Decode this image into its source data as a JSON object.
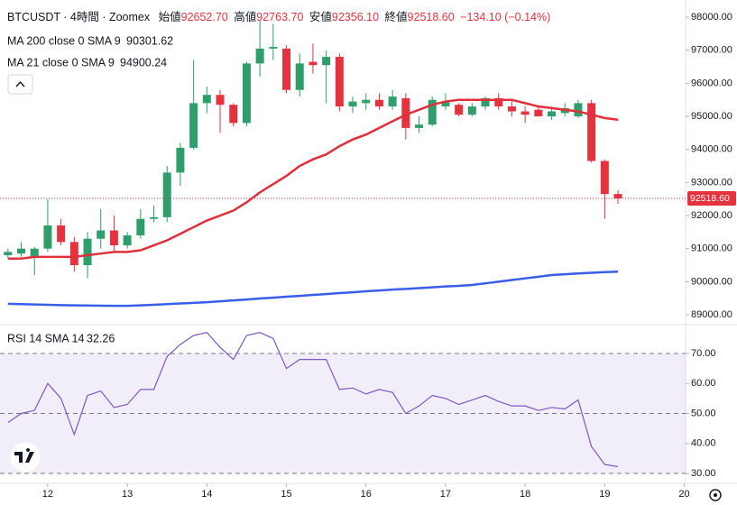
{
  "chart_data": [
    {
      "type": "candlestick",
      "header": {
        "title": "BTCUSDT · 4時間 · Zoomex",
        "open_label": "始値",
        "open": "92652.70",
        "high_label": "高値",
        "high": "92763.70",
        "low_label": "安値",
        "low": "92356.10",
        "close_label": "終値",
        "close": "92518.60",
        "change": "−134.10 (−0.14%)"
      },
      "up_color": "#2e9e6b",
      "down_color": "#e5323f",
      "xlim": [
        -0.6,
        51.1
      ],
      "ylim": [
        88755,
        98520
      ],
      "yticks": [
        {
          "value": 98000,
          "label": "98000.00"
        },
        {
          "value": 97000,
          "label": "97000.00"
        },
        {
          "value": 96000,
          "label": "96000.00"
        },
        {
          "value": 95000,
          "label": "95000.00"
        },
        {
          "value": 94000,
          "label": "94000.00"
        },
        {
          "value": 93000,
          "label": "93000.00"
        },
        {
          "value": 92000,
          "label": "92000.00"
        },
        {
          "value": 91000,
          "label": "91000.00"
        },
        {
          "value": 90000,
          "label": "90000.00"
        },
        {
          "value": 89000,
          "label": "89000.00"
        }
      ],
      "price_label": "92518.60",
      "candles": {
        "open": [
          90800,
          90850,
          90750,
          91000,
          91700,
          91200,
          90500,
          91300,
          91550,
          91100,
          91400,
          91900,
          91950,
          93300,
          94050,
          95400,
          95650,
          95350,
          94800,
          96600,
          97050,
          97050,
          95800,
          96650,
          96550,
          96800,
          95300,
          95400,
          95500,
          95300,
          95550,
          94650,
          94750,
          95300,
          95350,
          95050,
          95300,
          95550,
          95300,
          95150,
          95200,
          95000,
          95100,
          95000,
          95400,
          93650,
          92652.7
        ],
        "high": [
          91000,
          91200,
          91050,
          92500,
          91900,
          91350,
          91500,
          92200,
          92000,
          91500,
          92200,
          92300,
          93500,
          94200,
          96700,
          95900,
          95800,
          95400,
          96650,
          97900,
          97800,
          97150,
          96900,
          97200,
          97000,
          96900,
          95600,
          95700,
          95700,
          95800,
          95700,
          95000,
          95600,
          95700,
          95400,
          95400,
          95600,
          95700,
          95500,
          95300,
          95300,
          95300,
          95400,
          95500,
          95500,
          93700,
          92763.7
        ],
        "low": [
          90700,
          90750,
          90200,
          90900,
          91100,
          90300,
          90100,
          91000,
          90900,
          91000,
          91300,
          91800,
          91800,
          92900,
          94000,
          95100,
          94500,
          94700,
          94700,
          96200,
          96700,
          95700,
          95600,
          96300,
          95400,
          95150,
          95100,
          95200,
          95200,
          95200,
          94300,
          94500,
          94700,
          95200,
          95000,
          95000,
          95200,
          95200,
          95000,
          94800,
          95000,
          94900,
          95000,
          94950,
          93600,
          91900,
          92356.1
        ],
        "close": [
          90900,
          91000,
          91000,
          91700,
          91200,
          90500,
          91300,
          91550,
          91100,
          91400,
          91900,
          91950,
          93300,
          94050,
          95400,
          95650,
          95350,
          94800,
          96600,
          97050,
          97100,
          95800,
          96600,
          96550,
          96800,
          95300,
          95450,
          95500,
          95300,
          95600,
          94650,
          94750,
          95500,
          95450,
          95050,
          95300,
          95550,
          95300,
          95150,
          95050,
          95000,
          95150,
          95250,
          95400,
          93650,
          92650,
          92518.6
        ]
      },
      "series": [
        {
          "name": "MA 200 close 0 SMA 9",
          "last_label": "90301.62",
          "color": "#3a5ee8",
          "values": [
            89330,
            89320,
            89310,
            89300,
            89290,
            89285,
            89280,
            89275,
            89270,
            89270,
            89285,
            89300,
            89320,
            89340,
            89360,
            89380,
            89405,
            89435,
            89460,
            89490,
            89515,
            89545,
            89570,
            89600,
            89625,
            89655,
            89680,
            89710,
            89735,
            89760,
            89780,
            89805,
            89830,
            89855,
            89875,
            89900,
            89950,
            90000,
            90050,
            90100,
            90150,
            90200,
            90225,
            90250,
            90270,
            90290,
            90301.62
          ]
        },
        {
          "name": "MA 21 close 0 SMA 9",
          "last_label": "94900.24",
          "color": "#e0303c",
          "values": [
            90700,
            90700,
            90750,
            90750,
            90750,
            90750,
            90800,
            90850,
            90900,
            90900,
            90950,
            91100,
            91250,
            91450,
            91650,
            91850,
            92000,
            92150,
            92400,
            92700,
            92950,
            93200,
            93500,
            93700,
            93850,
            94100,
            94300,
            94450,
            94650,
            94850,
            95050,
            95200,
            95350,
            95450,
            95500,
            95500,
            95500,
            95500,
            95500,
            95400,
            95300,
            95250,
            95200,
            95150,
            95050,
            94950,
            94900.24
          ]
        }
      ]
    },
    {
      "type": "line",
      "xlim": [
        -0.6,
        51.1
      ],
      "ylim": [
        27,
        79
      ],
      "yticks": [
        {
          "value": 70,
          "label": "70.00"
        },
        {
          "value": 60,
          "label": "60.00"
        },
        {
          "value": 50,
          "label": "50.00"
        },
        {
          "value": 40,
          "label": "40.00"
        },
        {
          "value": 30,
          "label": "30.00"
        }
      ],
      "band": [
        30,
        70
      ],
      "levels": [
        70,
        50,
        30
      ],
      "xticks": [
        {
          "value": 3,
          "label": "12"
        },
        {
          "value": 9,
          "label": "13"
        },
        {
          "value": 15,
          "label": "14"
        },
        {
          "value": 21,
          "label": "15"
        },
        {
          "value": 27,
          "label": "16"
        },
        {
          "value": 33,
          "label": "17"
        },
        {
          "value": 39,
          "label": "18"
        },
        {
          "value": 45,
          "label": "19"
        },
        {
          "value": 51,
          "label": "20"
        }
      ],
      "series": [
        {
          "name": "RSI 14 SMA 14",
          "last_label": "32.26",
          "color": "#7e57c2",
          "values": [
            47,
            50,
            51,
            60,
            55,
            43,
            56,
            57.5,
            52,
            53,
            58,
            58,
            69,
            73,
            76,
            77,
            72,
            68,
            76,
            77,
            75,
            65,
            68,
            68,
            68,
            58,
            58.5,
            56.5,
            58,
            57,
            50,
            52.5,
            56,
            55,
            53,
            54.5,
            56,
            54,
            52.5,
            52.5,
            51,
            52,
            51.5,
            54.5,
            39,
            33,
            32.26
          ]
        }
      ]
    }
  ]
}
